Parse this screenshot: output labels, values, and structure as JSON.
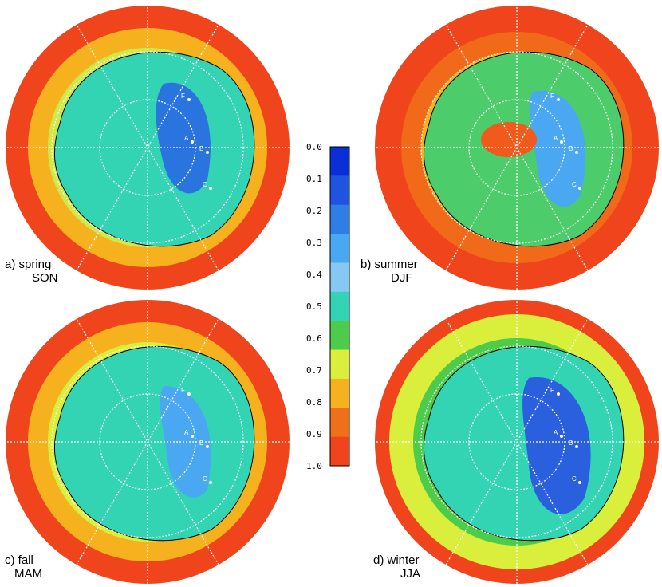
{
  "panels": [
    {
      "id": "a",
      "label": "a) spring",
      "sublabel": "SON",
      "zones": [
        {
          "level": 0.95,
          "color": "#f0441c"
        },
        {
          "level": 0.8,
          "color": "#f5b21e"
        },
        {
          "level": 0.5,
          "color": "#33d4b4"
        },
        {
          "level": 0.2,
          "color": "#2a74e0"
        }
      ]
    },
    {
      "id": "b",
      "label": "b) summer",
      "sublabel": "DJF",
      "zones": [
        {
          "level": 0.95,
          "color": "#f0441c"
        },
        {
          "level": 0.75,
          "color": "#f5b21e"
        },
        {
          "level": 0.55,
          "color": "#4ccc6a"
        },
        {
          "level": 0.9,
          "color": "#f05a1a"
        }
      ]
    },
    {
      "id": "c",
      "label": "c) fall",
      "sublabel": "MAM",
      "zones": [
        {
          "level": 0.95,
          "color": "#f0441c"
        },
        {
          "level": 0.7,
          "color": "#d9ef3c"
        },
        {
          "level": 0.5,
          "color": "#33d4b4"
        },
        {
          "level": 0.3,
          "color": "#4aa8f2"
        }
      ]
    },
    {
      "id": "d",
      "label": "d) winter",
      "sublabel": "JJA",
      "zones": [
        {
          "level": 0.9,
          "color": "#f0441c"
        },
        {
          "level": 0.7,
          "color": "#d9ef3c"
        },
        {
          "level": 0.45,
          "color": "#33d4b4"
        },
        {
          "level": 0.15,
          "color": "#2a5fde"
        }
      ]
    }
  ],
  "markers": [
    "A",
    "B",
    "C",
    "F"
  ],
  "colorbar": {
    "ticks": [
      "0.0",
      "0.1",
      "0.2",
      "0.3",
      "0.4",
      "0.5",
      "0.6",
      "0.7",
      "0.8",
      "0.9",
      "1.0"
    ],
    "colors": [
      "#0a2fd8",
      "#1f55de",
      "#2f7ee6",
      "#4aa8f2",
      "#86c8f4",
      "#33d4b4",
      "#4ccc4a",
      "#d9ef3c",
      "#f5b21e",
      "#f0701a",
      "#f0441c"
    ]
  }
}
